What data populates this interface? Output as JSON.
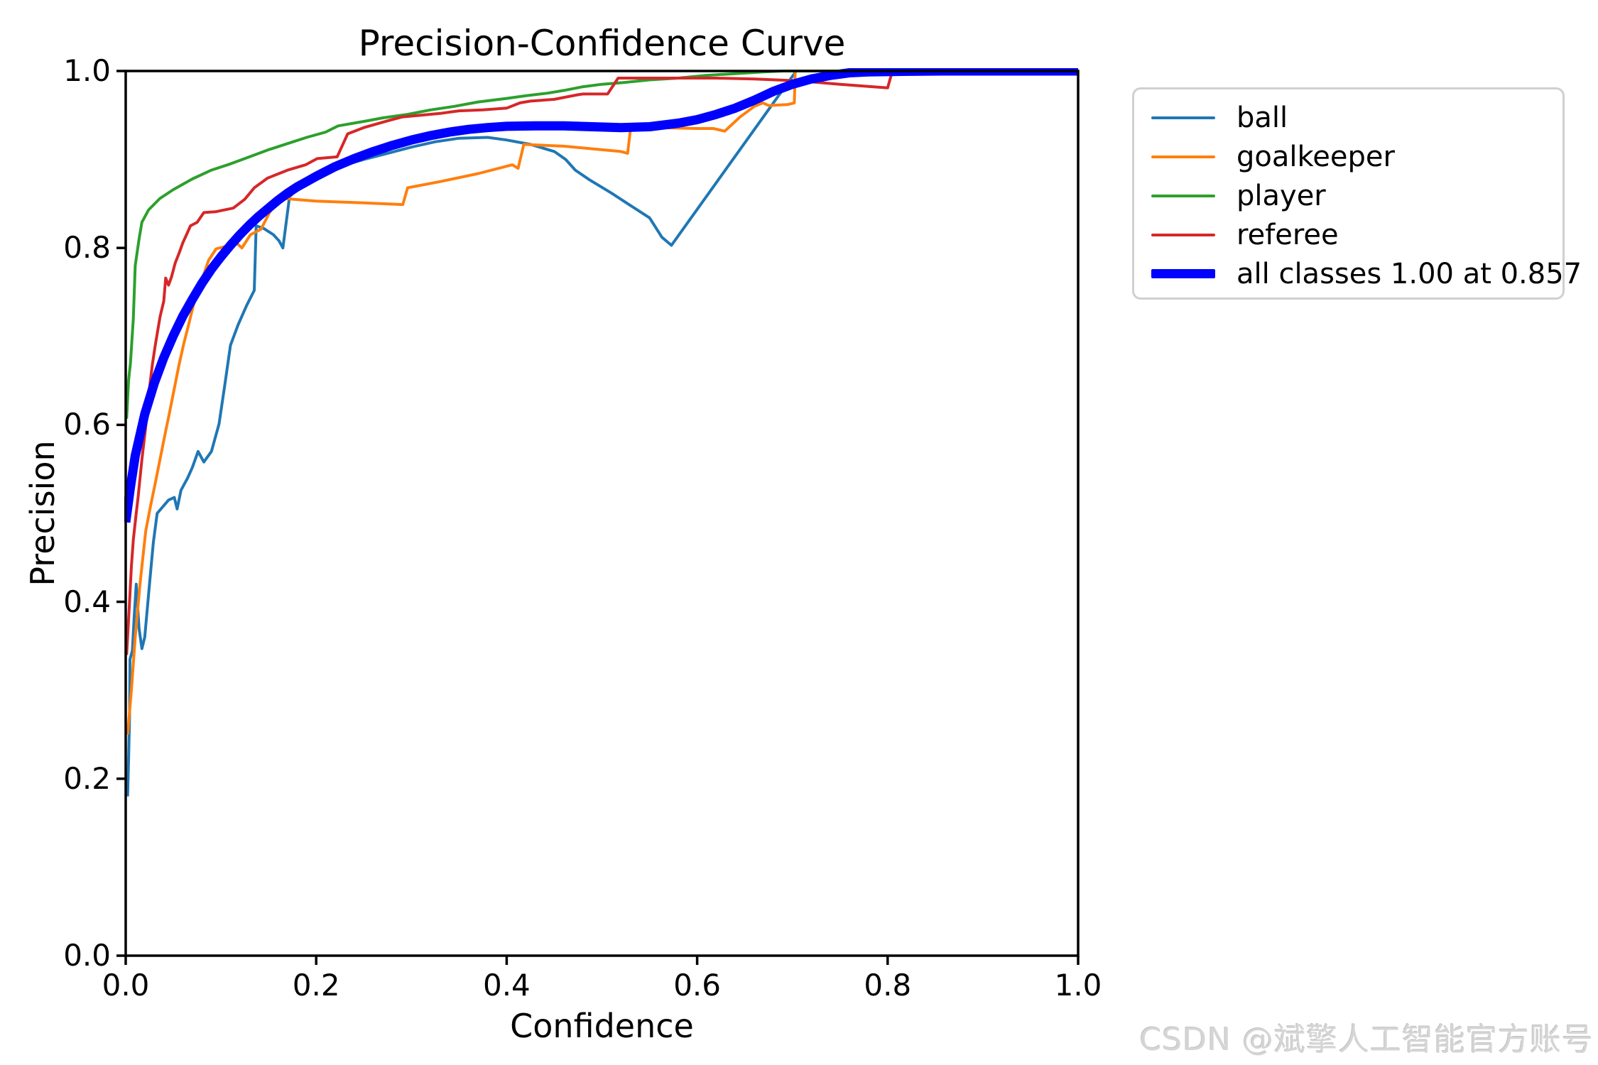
{
  "watermark": {
    "text": "CSDN @斌擎人工智能官方账号"
  },
  "chart_data": {
    "type": "line",
    "title": "Precision-Confidence Curve",
    "xlabel": "Confidence",
    "ylabel": "Precision",
    "xlim": [
      0.0,
      1.0
    ],
    "ylim": [
      0.0,
      1.0
    ],
    "grid": false,
    "legend_position": "upper right, outside plot",
    "xticks": [
      {
        "value": 0.0,
        "label": "0.0"
      },
      {
        "value": 0.2,
        "label": "0.2"
      },
      {
        "value": 0.4,
        "label": "0.4"
      },
      {
        "value": 0.6,
        "label": "0.6"
      },
      {
        "value": 0.8,
        "label": "0.8"
      },
      {
        "value": 1.0,
        "label": "1.0"
      }
    ],
    "yticks": [
      {
        "value": 0.0,
        "label": "0.0"
      },
      {
        "value": 0.2,
        "label": "0.2"
      },
      {
        "value": 0.4,
        "label": "0.4"
      },
      {
        "value": 0.6,
        "label": "0.6"
      },
      {
        "value": 0.8,
        "label": "0.8"
      },
      {
        "value": 1.0,
        "label": "1.0"
      }
    ],
    "series": [
      {
        "name": "ball",
        "color": "#1f77b4",
        "thick": false,
        "points": [
          [
            0.002,
            0.18
          ],
          [
            0.003,
            0.22
          ],
          [
            0.004,
            0.27
          ],
          [
            0.0045,
            0.335
          ],
          [
            0.007,
            0.345
          ],
          [
            0.009,
            0.385
          ],
          [
            0.011,
            0.42
          ],
          [
            0.014,
            0.37
          ],
          [
            0.017,
            0.347
          ],
          [
            0.02,
            0.36
          ],
          [
            0.025,
            0.42
          ],
          [
            0.029,
            0.467
          ],
          [
            0.033,
            0.5
          ],
          [
            0.045,
            0.515
          ],
          [
            0.051,
            0.518
          ],
          [
            0.054,
            0.505
          ],
          [
            0.058,
            0.526
          ],
          [
            0.065,
            0.54
          ],
          [
            0.07,
            0.552
          ],
          [
            0.076,
            0.57
          ],
          [
            0.082,
            0.558
          ],
          [
            0.09,
            0.57
          ],
          [
            0.098,
            0.601
          ],
          [
            0.104,
            0.645
          ],
          [
            0.11,
            0.69
          ],
          [
            0.118,
            0.713
          ],
          [
            0.127,
            0.735
          ],
          [
            0.135,
            0.752
          ],
          [
            0.137,
            0.825
          ],
          [
            0.145,
            0.822
          ],
          [
            0.155,
            0.815
          ],
          [
            0.161,
            0.808
          ],
          [
            0.165,
            0.8
          ],
          [
            0.172,
            0.858
          ],
          [
            0.18,
            0.866
          ],
          [
            0.2,
            0.877
          ],
          [
            0.225,
            0.892
          ],
          [
            0.25,
            0.9
          ],
          [
            0.275,
            0.907
          ],
          [
            0.3,
            0.914
          ],
          [
            0.325,
            0.92
          ],
          [
            0.35,
            0.924
          ],
          [
            0.38,
            0.925
          ],
          [
            0.4,
            0.922
          ],
          [
            0.425,
            0.917
          ],
          [
            0.45,
            0.909
          ],
          [
            0.462,
            0.9
          ],
          [
            0.472,
            0.888
          ],
          [
            0.487,
            0.877
          ],
          [
            0.51,
            0.862
          ],
          [
            0.53,
            0.848
          ],
          [
            0.55,
            0.834
          ],
          [
            0.563,
            0.812
          ],
          [
            0.573,
            0.803
          ],
          [
            0.704,
            1.0
          ],
          [
            1.0,
            1.0
          ]
        ]
      },
      {
        "name": "goalkeeper",
        "color": "#ff7f0e",
        "thick": false,
        "points": [
          [
            0.002,
            0.25
          ],
          [
            0.006,
            0.3
          ],
          [
            0.01,
            0.36
          ],
          [
            0.015,
            0.42
          ],
          [
            0.021,
            0.48
          ],
          [
            0.026,
            0.508
          ],
          [
            0.031,
            0.534
          ],
          [
            0.036,
            0.561
          ],
          [
            0.041,
            0.588
          ],
          [
            0.046,
            0.614
          ],
          [
            0.051,
            0.641
          ],
          [
            0.056,
            0.668
          ],
          [
            0.061,
            0.692
          ],
          [
            0.066,
            0.713
          ],
          [
            0.071,
            0.735
          ],
          [
            0.076,
            0.751
          ],
          [
            0.081,
            0.767
          ],
          [
            0.087,
            0.786
          ],
          [
            0.095,
            0.799
          ],
          [
            0.106,
            0.802
          ],
          [
            0.115,
            0.807
          ],
          [
            0.122,
            0.8
          ],
          [
            0.131,
            0.815
          ],
          [
            0.142,
            0.821
          ],
          [
            0.151,
            0.84
          ],
          [
            0.158,
            0.851
          ],
          [
            0.164,
            0.856
          ],
          [
            0.2,
            0.853
          ],
          [
            0.25,
            0.851
          ],
          [
            0.291,
            0.849
          ],
          [
            0.296,
            0.868
          ],
          [
            0.33,
            0.875
          ],
          [
            0.37,
            0.884
          ],
          [
            0.406,
            0.894
          ],
          [
            0.412,
            0.89
          ],
          [
            0.418,
            0.917
          ],
          [
            0.44,
            0.916
          ],
          [
            0.46,
            0.915
          ],
          [
            0.49,
            0.912
          ],
          [
            0.52,
            0.909
          ],
          [
            0.527,
            0.907
          ],
          [
            0.53,
            0.934
          ],
          [
            0.56,
            0.936
          ],
          [
            0.6,
            0.935
          ],
          [
            0.617,
            0.935
          ],
          [
            0.629,
            0.932
          ],
          [
            0.645,
            0.948
          ],
          [
            0.66,
            0.96
          ],
          [
            0.669,
            0.964
          ],
          [
            0.675,
            0.961
          ],
          [
            0.695,
            0.962
          ],
          [
            0.702,
            0.964
          ],
          [
            0.703,
            1.0
          ],
          [
            1.0,
            1.0
          ]
        ]
      },
      {
        "name": "player",
        "color": "#2ca02c",
        "thick": false,
        "points": [
          [
            0.001,
            0.607
          ],
          [
            0.003,
            0.65
          ],
          [
            0.005,
            0.67
          ],
          [
            0.008,
            0.72
          ],
          [
            0.01,
            0.78
          ],
          [
            0.014,
            0.81
          ],
          [
            0.017,
            0.829
          ],
          [
            0.024,
            0.843
          ],
          [
            0.036,
            0.856
          ],
          [
            0.05,
            0.866
          ],
          [
            0.07,
            0.878
          ],
          [
            0.09,
            0.888
          ],
          [
            0.11,
            0.895
          ],
          [
            0.13,
            0.903
          ],
          [
            0.15,
            0.911
          ],
          [
            0.17,
            0.918
          ],
          [
            0.19,
            0.925
          ],
          [
            0.21,
            0.931
          ],
          [
            0.223,
            0.938
          ],
          [
            0.25,
            0.943
          ],
          [
            0.27,
            0.947
          ],
          [
            0.296,
            0.951
          ],
          [
            0.32,
            0.956
          ],
          [
            0.345,
            0.96
          ],
          [
            0.37,
            0.965
          ],
          [
            0.4,
            0.969
          ],
          [
            0.42,
            0.972
          ],
          [
            0.443,
            0.975
          ],
          [
            0.46,
            0.978
          ],
          [
            0.479,
            0.982
          ],
          [
            0.5,
            0.985
          ],
          [
            0.523,
            0.987
          ],
          [
            0.55,
            0.99
          ],
          [
            0.58,
            0.992
          ],
          [
            0.609,
            0.995
          ],
          [
            0.64,
            0.997
          ],
          [
            0.67,
            0.999
          ],
          [
            0.69,
            1.0
          ],
          [
            1.0,
            1.0
          ]
        ]
      },
      {
        "name": "referee",
        "color": "#d62728",
        "thick": false,
        "points": [
          [
            0.001,
            0.34
          ],
          [
            0.004,
            0.4
          ],
          [
            0.006,
            0.44
          ],
          [
            0.008,
            0.47
          ],
          [
            0.011,
            0.5
          ],
          [
            0.013,
            0.518
          ],
          [
            0.017,
            0.561
          ],
          [
            0.021,
            0.598
          ],
          [
            0.024,
            0.633
          ],
          [
            0.028,
            0.668
          ],
          [
            0.031,
            0.69
          ],
          [
            0.036,
            0.722
          ],
          [
            0.04,
            0.74
          ],
          [
            0.042,
            0.766
          ],
          [
            0.045,
            0.758
          ],
          [
            0.048,
            0.767
          ],
          [
            0.052,
            0.783
          ],
          [
            0.056,
            0.794
          ],
          [
            0.06,
            0.806
          ],
          [
            0.063,
            0.813
          ],
          [
            0.068,
            0.825
          ],
          [
            0.075,
            0.829
          ],
          [
            0.082,
            0.84
          ],
          [
            0.095,
            0.841
          ],
          [
            0.113,
            0.845
          ],
          [
            0.125,
            0.855
          ],
          [
            0.135,
            0.868
          ],
          [
            0.149,
            0.879
          ],
          [
            0.17,
            0.888
          ],
          [
            0.189,
            0.894
          ],
          [
            0.201,
            0.901
          ],
          [
            0.222,
            0.903
          ],
          [
            0.228,
            0.917
          ],
          [
            0.233,
            0.929
          ],
          [
            0.25,
            0.936
          ],
          [
            0.276,
            0.944
          ],
          [
            0.29,
            0.948
          ],
          [
            0.31,
            0.95
          ],
          [
            0.33,
            0.952
          ],
          [
            0.35,
            0.955
          ],
          [
            0.375,
            0.956
          ],
          [
            0.4,
            0.958
          ],
          [
            0.414,
            0.964
          ],
          [
            0.425,
            0.966
          ],
          [
            0.45,
            0.968
          ],
          [
            0.474,
            0.973
          ],
          [
            0.48,
            0.974
          ],
          [
            0.506,
            0.974
          ],
          [
            0.517,
            0.992
          ],
          [
            0.56,
            0.992
          ],
          [
            0.62,
            0.992
          ],
          [
            0.66,
            0.991
          ],
          [
            0.705,
            0.989
          ],
          [
            0.75,
            0.985
          ],
          [
            0.8,
            0.981
          ],
          [
            0.805,
            1.0
          ],
          [
            1.0,
            1.0
          ]
        ]
      },
      {
        "name": "all classes 1.00 at 0.857",
        "color": "#0000ff",
        "thick": true,
        "points": [
          [
            0.0,
            0.49
          ],
          [
            0.005,
            0.53
          ],
          [
            0.01,
            0.565
          ],
          [
            0.02,
            0.612
          ],
          [
            0.03,
            0.647
          ],
          [
            0.04,
            0.676
          ],
          [
            0.05,
            0.701
          ],
          [
            0.06,
            0.723
          ],
          [
            0.07,
            0.742
          ],
          [
            0.08,
            0.76
          ],
          [
            0.09,
            0.776
          ],
          [
            0.1,
            0.79
          ],
          [
            0.11,
            0.803
          ],
          [
            0.12,
            0.815
          ],
          [
            0.13,
            0.826
          ],
          [
            0.14,
            0.836
          ],
          [
            0.15,
            0.845
          ],
          [
            0.16,
            0.854
          ],
          [
            0.17,
            0.862
          ],
          [
            0.18,
            0.869
          ],
          [
            0.19,
            0.875
          ],
          [
            0.2,
            0.881
          ],
          [
            0.22,
            0.892
          ],
          [
            0.24,
            0.901
          ],
          [
            0.26,
            0.909
          ],
          [
            0.28,
            0.916
          ],
          [
            0.3,
            0.922
          ],
          [
            0.32,
            0.927
          ],
          [
            0.34,
            0.931
          ],
          [
            0.36,
            0.934
          ],
          [
            0.38,
            0.936
          ],
          [
            0.4,
            0.9375
          ],
          [
            0.43,
            0.938
          ],
          [
            0.46,
            0.938
          ],
          [
            0.49,
            0.937
          ],
          [
            0.52,
            0.936
          ],
          [
            0.55,
            0.937
          ],
          [
            0.58,
            0.941
          ],
          [
            0.6,
            0.945
          ],
          [
            0.62,
            0.951
          ],
          [
            0.64,
            0.958
          ],
          [
            0.66,
            0.967
          ],
          [
            0.68,
            0.977
          ],
          [
            0.7,
            0.985
          ],
          [
            0.72,
            0.991
          ],
          [
            0.74,
            0.995
          ],
          [
            0.76,
            0.998
          ],
          [
            0.78,
            0.999
          ],
          [
            0.81,
            0.9995
          ],
          [
            0.857,
            1.0
          ],
          [
            1.0,
            1.0
          ]
        ]
      }
    ],
    "legend": {
      "items": [
        {
          "label": "ball",
          "color": "#1f77b4",
          "thick": false
        },
        {
          "label": "goalkeeper",
          "color": "#ff7f0e",
          "thick": false
        },
        {
          "label": "player",
          "color": "#2ca02c",
          "thick": false
        },
        {
          "label": "referee",
          "color": "#d62728",
          "thick": false
        },
        {
          "label": "all classes 1.00 at 0.857",
          "color": "#0000ff",
          "thick": true
        }
      ]
    }
  }
}
